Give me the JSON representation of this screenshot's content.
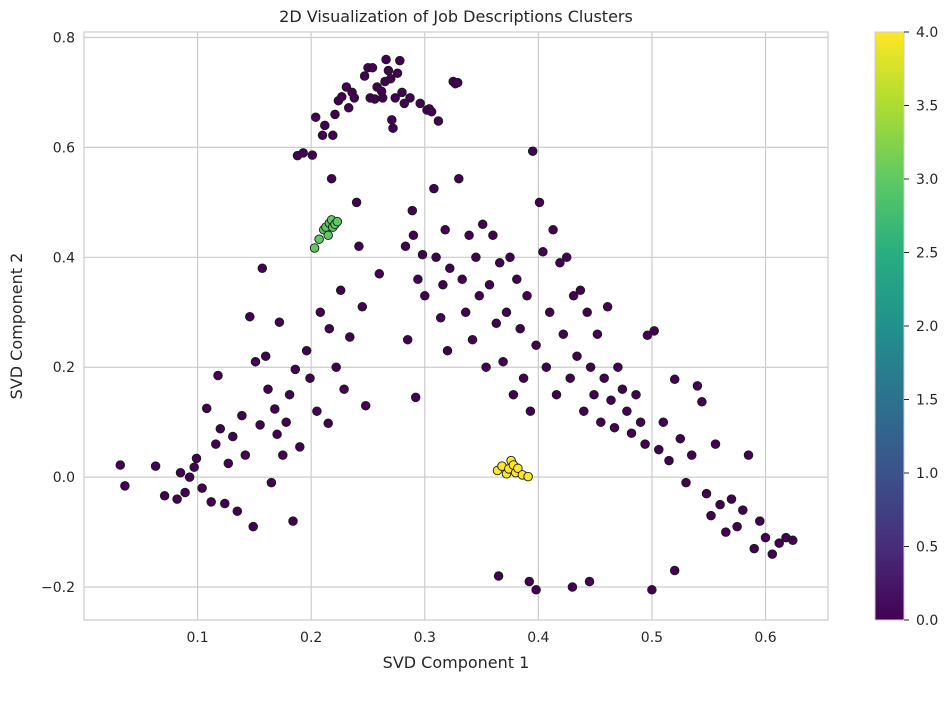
{
  "chart_data": {
    "type": "scatter",
    "title": "2D Visualization of Job Descriptions Clusters",
    "xlabel": "SVD Component 1",
    "ylabel": "SVD Component 2",
    "xlim": [
      0.0,
      0.655
    ],
    "ylim": [
      -0.26,
      0.81
    ],
    "xticks": [
      0.1,
      0.2,
      0.3,
      0.4,
      0.5,
      0.6
    ],
    "yticks": [
      -0.2,
      0.0,
      0.2,
      0.4,
      0.6,
      0.8
    ],
    "xtick_labels": [
      "0.1",
      "0.2",
      "0.3",
      "0.4",
      "0.5",
      "0.6"
    ],
    "ytick_labels": [
      "−0.2",
      "0.0",
      "0.2",
      "0.4",
      "0.6",
      "0.8"
    ],
    "grid": true,
    "colormap": "viridis",
    "colorbar": {
      "min": 0.0,
      "max": 4.0,
      "ticks": [
        0.0,
        0.5,
        1.0,
        1.5,
        2.0,
        2.5,
        3.0,
        3.5,
        4.0
      ],
      "tick_labels": [
        "0.0",
        "0.5",
        "1.0",
        "1.5",
        "2.0",
        "2.5",
        "3.0",
        "3.5",
        "4.0"
      ]
    },
    "cluster_colors": {
      "0": "#440154",
      "3": "#5ec962",
      "4": "#fde725"
    },
    "marker_edge_color": "#1a1a1a",
    "series": [
      {
        "cluster": 0,
        "color": "#440154",
        "points": [
          [
            0.032,
            0.022
          ],
          [
            0.036,
            -0.016
          ],
          [
            0.063,
            0.02
          ],
          [
            0.071,
            -0.034
          ],
          [
            0.082,
            -0.04
          ],
          [
            0.085,
            0.008
          ],
          [
            0.089,
            -0.028
          ],
          [
            0.093,
            0.0
          ],
          [
            0.097,
            0.018
          ],
          [
            0.099,
            0.034
          ],
          [
            0.104,
            -0.02
          ],
          [
            0.108,
            0.125
          ],
          [
            0.112,
            -0.045
          ],
          [
            0.116,
            0.06
          ],
          [
            0.118,
            0.185
          ],
          [
            0.12,
            0.088
          ],
          [
            0.124,
            -0.048
          ],
          [
            0.127,
            0.025
          ],
          [
            0.131,
            0.074
          ],
          [
            0.135,
            -0.062
          ],
          [
            0.139,
            0.112
          ],
          [
            0.142,
            0.04
          ],
          [
            0.146,
            0.292
          ],
          [
            0.149,
            -0.09
          ],
          [
            0.151,
            0.21
          ],
          [
            0.155,
            0.095
          ],
          [
            0.157,
            0.38
          ],
          [
            0.16,
            0.22
          ],
          [
            0.162,
            0.16
          ],
          [
            0.165,
            -0.01
          ],
          [
            0.168,
            0.124
          ],
          [
            0.17,
            0.078
          ],
          [
            0.172,
            0.282
          ],
          [
            0.175,
            0.04
          ],
          [
            0.178,
            0.1
          ],
          [
            0.181,
            0.15
          ],
          [
            0.184,
            -0.08
          ],
          [
            0.186,
            0.196
          ],
          [
            0.188,
            0.585
          ],
          [
            0.19,
            0.055
          ],
          [
            0.193,
            0.59
          ],
          [
            0.196,
            0.23
          ],
          [
            0.199,
            0.18
          ],
          [
            0.201,
            0.586
          ],
          [
            0.204,
            0.655
          ],
          [
            0.205,
            0.12
          ],
          [
            0.208,
            0.3
          ],
          [
            0.21,
            0.622
          ],
          [
            0.212,
            0.64
          ],
          [
            0.215,
            0.098
          ],
          [
            0.216,
            0.27
          ],
          [
            0.218,
            0.543
          ],
          [
            0.219,
            0.622
          ],
          [
            0.221,
            0.66
          ],
          [
            0.222,
            0.2
          ],
          [
            0.224,
            0.685
          ],
          [
            0.226,
            0.34
          ],
          [
            0.227,
            0.692
          ],
          [
            0.229,
            0.16
          ],
          [
            0.231,
            0.71
          ],
          [
            0.233,
            0.672
          ],
          [
            0.234,
            0.255
          ],
          [
            0.236,
            0.7
          ],
          [
            0.238,
            0.69
          ],
          [
            0.24,
            0.5
          ],
          [
            0.242,
            0.42
          ],
          [
            0.245,
            0.31
          ],
          [
            0.247,
            0.73
          ],
          [
            0.248,
            0.13
          ],
          [
            0.25,
            0.745
          ],
          [
            0.252,
            0.69
          ],
          [
            0.254,
            0.745
          ],
          [
            0.256,
            0.688
          ],
          [
            0.258,
            0.71
          ],
          [
            0.26,
            0.37
          ],
          [
            0.262,
            0.702
          ],
          [
            0.263,
            0.69
          ],
          [
            0.265,
            0.72
          ],
          [
            0.266,
            0.76
          ],
          [
            0.268,
            0.74
          ],
          [
            0.27,
            0.725
          ],
          [
            0.271,
            0.65
          ],
          [
            0.272,
            0.635
          ],
          [
            0.274,
            0.69
          ],
          [
            0.276,
            0.735
          ],
          [
            0.278,
            0.758
          ],
          [
            0.28,
            0.7
          ],
          [
            0.282,
            0.68
          ],
          [
            0.283,
            0.42
          ],
          [
            0.285,
            0.25
          ],
          [
            0.287,
            0.69
          ],
          [
            0.289,
            0.485
          ],
          [
            0.29,
            0.44
          ],
          [
            0.292,
            0.145
          ],
          [
            0.294,
            0.36
          ],
          [
            0.296,
            0.68
          ],
          [
            0.298,
            0.405
          ],
          [
            0.3,
            0.33
          ],
          [
            0.302,
            0.668
          ],
          [
            0.304,
            0.67
          ],
          [
            0.306,
            0.665
          ],
          [
            0.308,
            0.525
          ],
          [
            0.31,
            0.4
          ],
          [
            0.312,
            0.648
          ],
          [
            0.314,
            0.29
          ],
          [
            0.316,
            0.35
          ],
          [
            0.318,
            0.45
          ],
          [
            0.32,
            0.23
          ],
          [
            0.322,
            0.38
          ],
          [
            0.325,
            0.72
          ],
          [
            0.327,
            0.716
          ],
          [
            0.329,
            0.718
          ],
          [
            0.33,
            0.543
          ],
          [
            0.333,
            0.36
          ],
          [
            0.336,
            0.3
          ],
          [
            0.339,
            0.44
          ],
          [
            0.342,
            0.25
          ],
          [
            0.345,
            0.4
          ],
          [
            0.348,
            0.33
          ],
          [
            0.351,
            0.46
          ],
          [
            0.354,
            0.2
          ],
          [
            0.357,
            0.35
          ],
          [
            0.36,
            0.44
          ],
          [
            0.363,
            0.28
          ],
          [
            0.366,
            0.39
          ],
          [
            0.369,
            0.21
          ],
          [
            0.372,
            0.3
          ],
          [
            0.375,
            0.4
          ],
          [
            0.378,
            0.15
          ],
          [
            0.381,
            0.36
          ],
          [
            0.384,
            0.27
          ],
          [
            0.387,
            0.18
          ],
          [
            0.39,
            0.33
          ],
          [
            0.393,
            0.12
          ],
          [
            0.395,
            0.593
          ],
          [
            0.398,
            0.24
          ],
          [
            0.401,
            0.5
          ],
          [
            0.404,
            0.41
          ],
          [
            0.407,
            0.2
          ],
          [
            0.41,
            0.3
          ],
          [
            0.413,
            0.45
          ],
          [
            0.416,
            0.15
          ],
          [
            0.419,
            0.39
          ],
          [
            0.422,
            0.26
          ],
          [
            0.425,
            0.4
          ],
          [
            0.428,
            0.18
          ],
          [
            0.431,
            0.33
          ],
          [
            0.434,
            0.22
          ],
          [
            0.437,
            0.34
          ],
          [
            0.44,
            0.12
          ],
          [
            0.443,
            0.3
          ],
          [
            0.446,
            0.2
          ],
          [
            0.449,
            0.15
          ],
          [
            0.452,
            0.26
          ],
          [
            0.455,
            0.1
          ],
          [
            0.458,
            0.18
          ],
          [
            0.461,
            0.31
          ],
          [
            0.464,
            0.14
          ],
          [
            0.467,
            0.09
          ],
          [
            0.47,
            0.2
          ],
          [
            0.474,
            0.16
          ],
          [
            0.478,
            0.12
          ],
          [
            0.482,
            0.08
          ],
          [
            0.486,
            0.15
          ],
          [
            0.49,
            0.1
          ],
          [
            0.494,
            0.06
          ],
          [
            0.496,
            0.258
          ],
          [
            0.502,
            0.266
          ],
          [
            0.506,
            0.05
          ],
          [
            0.51,
            0.1
          ],
          [
            0.515,
            0.03
          ],
          [
            0.52,
            0.178
          ],
          [
            0.525,
            0.07
          ],
          [
            0.53,
            -0.01
          ],
          [
            0.535,
            0.04
          ],
          [
            0.54,
            0.166
          ],
          [
            0.544,
            0.137
          ],
          [
            0.548,
            -0.03
          ],
          [
            0.552,
            -0.07
          ],
          [
            0.556,
            0.06
          ],
          [
            0.56,
            -0.05
          ],
          [
            0.565,
            -0.1
          ],
          [
            0.57,
            -0.04
          ],
          [
            0.575,
            -0.09
          ],
          [
            0.58,
            -0.06
          ],
          [
            0.585,
            0.04
          ],
          [
            0.59,
            -0.13
          ],
          [
            0.595,
            -0.08
          ],
          [
            0.6,
            -0.11
          ],
          [
            0.606,
            -0.14
          ],
          [
            0.612,
            -0.12
          ],
          [
            0.618,
            -0.11
          ],
          [
            0.624,
            -0.115
          ],
          [
            0.392,
            -0.19
          ],
          [
            0.398,
            -0.205
          ],
          [
            0.365,
            -0.18
          ],
          [
            0.43,
            -0.2
          ],
          [
            0.445,
            -0.19
          ],
          [
            0.5,
            -0.205
          ],
          [
            0.52,
            -0.17
          ]
        ]
      },
      {
        "cluster": 3,
        "color": "#5ec962",
        "points": [
          [
            0.203,
            0.417
          ],
          [
            0.207,
            0.433
          ],
          [
            0.211,
            0.45
          ],
          [
            0.213,
            0.455
          ],
          [
            0.215,
            0.44
          ],
          [
            0.216,
            0.462
          ],
          [
            0.218,
            0.468
          ],
          [
            0.219,
            0.455
          ],
          [
            0.221,
            0.46
          ],
          [
            0.223,
            0.465
          ]
        ]
      },
      {
        "cluster": 4,
        "color": "#fde725",
        "points": [
          [
            0.364,
            0.012
          ],
          [
            0.368,
            0.02
          ],
          [
            0.372,
            0.006
          ],
          [
            0.374,
            0.015
          ],
          [
            0.376,
            0.03
          ],
          [
            0.378,
            0.022
          ],
          [
            0.38,
            0.008
          ],
          [
            0.382,
            0.016
          ],
          [
            0.386,
            0.004
          ],
          [
            0.391,
            0.001
          ]
        ]
      }
    ]
  }
}
